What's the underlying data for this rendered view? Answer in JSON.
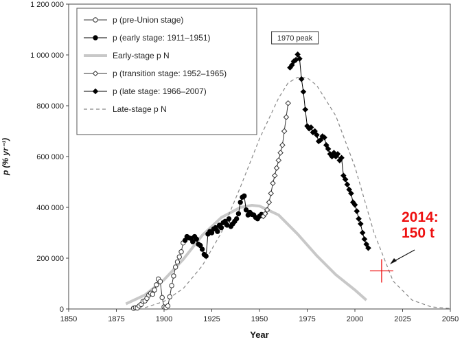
{
  "chart_data": {
    "type": "line",
    "xlabel": "Year",
    "ylabel": "p (% yr⁻¹)",
    "xlim": [
      1850,
      2050
    ],
    "ylim": [
      0,
      1200000
    ],
    "x_ticks": [
      1850,
      1875,
      1900,
      1925,
      1950,
      1975,
      2000,
      2025,
      2050
    ],
    "x_tick_labels": [
      "1850",
      "1875",
      "1900",
      "1925",
      "1950",
      "1975",
      "2000",
      "2025",
      "2050"
    ],
    "y_ticks": [
      0,
      200000,
      400000,
      600000,
      800000,
      1000000,
      1200000
    ],
    "y_tick_labels": [
      "0",
      "200 000",
      "400 000",
      "600 000",
      "800 000",
      "1 000 000",
      "1 200 000"
    ],
    "grid": false,
    "legend_position": "top-left",
    "series": [
      {
        "name": "p (pre-Union stage)",
        "style": "open-circle-line",
        "color": "#333333",
        "x": [
          1884,
          1885,
          1886,
          1887,
          1888,
          1889,
          1890,
          1891,
          1892,
          1893,
          1894,
          1895,
          1896,
          1897,
          1898,
          1899,
          1900,
          1901,
          1902,
          1903,
          1904,
          1905,
          1906,
          1907,
          1908,
          1909,
          1910
        ],
        "y": [
          3000,
          5000,
          4000,
          12000,
          18000,
          30000,
          32000,
          42000,
          55000,
          62000,
          58000,
          75000,
          95000,
          118000,
          108000,
          45000,
          8000,
          6000,
          12000,
          48000,
          92000,
          130000,
          165000,
          185000,
          205000,
          225000,
          260000
        ]
      },
      {
        "name": "p (early stage: 1911–1951)",
        "style": "filled-circle-line",
        "color": "#000000",
        "x": [
          1911,
          1912,
          1913,
          1914,
          1915,
          1916,
          1917,
          1918,
          1919,
          1920,
          1921,
          1922,
          1923,
          1924,
          1925,
          1926,
          1927,
          1928,
          1929,
          1930,
          1931,
          1932,
          1933,
          1934,
          1935,
          1936,
          1937,
          1938,
          1939,
          1940,
          1941,
          1942,
          1943,
          1944,
          1945,
          1946,
          1947,
          1948,
          1949,
          1950,
          1951
        ],
        "y": [
          270000,
          285000,
          280000,
          278000,
          265000,
          285000,
          275000,
          255000,
          250000,
          235000,
          215000,
          208000,
          295000,
          305000,
          300000,
          315000,
          320000,
          305000,
          330000,
          320000,
          340000,
          345000,
          330000,
          355000,
          325000,
          335000,
          345000,
          355000,
          375000,
          420000,
          440000,
          445000,
          390000,
          370000,
          380000,
          372000,
          370000,
          360000,
          355000,
          365000,
          372000
        ]
      },
      {
        "name": "Early-stage p N",
        "style": "thick-line",
        "color": "#c8c8c8",
        "x": [
          1880,
          1890,
          1900,
          1910,
          1920,
          1930,
          1940,
          1946,
          1950,
          1960,
          1970,
          1980,
          1990,
          2000,
          2006
        ],
        "y": [
          20000,
          55000,
          115000,
          195000,
          290000,
          360000,
          400000,
          408000,
          405000,
          370000,
          295000,
          210000,
          135000,
          75000,
          35000
        ]
      },
      {
        "name": "p (transition stage: 1952–1965)",
        "style": "open-diamond-line",
        "color": "#333333",
        "x": [
          1952,
          1953,
          1954,
          1955,
          1956,
          1957,
          1958,
          1959,
          1960,
          1961,
          1962,
          1963,
          1964,
          1965
        ],
        "y": [
          365000,
          375000,
          390000,
          420000,
          455000,
          495000,
          525000,
          555000,
          585000,
          615000,
          645000,
          700000,
          755000,
          810000
        ]
      },
      {
        "name": "p (late stage: 1966–2007)",
        "style": "filled-diamond-line",
        "color": "#000000",
        "x": [
          1966,
          1967,
          1968,
          1969,
          1970,
          1971,
          1972,
          1973,
          1974,
          1975,
          1976,
          1977,
          1978,
          1979,
          1980,
          1981,
          1982,
          1983,
          1984,
          1985,
          1986,
          1987,
          1988,
          1989,
          1990,
          1991,
          1992,
          1993,
          1994,
          1995,
          1996,
          1997,
          1998,
          1999,
          2000,
          2001,
          2002,
          2003,
          2004,
          2005,
          2006,
          2007
        ],
        "y": [
          950000,
          960000,
          975000,
          980000,
          1002000,
          985000,
          905000,
          855000,
          785000,
          720000,
          710000,
          715000,
          695000,
          700000,
          685000,
          660000,
          665000,
          680000,
          675000,
          645000,
          630000,
          610000,
          600000,
          615000,
          600000,
          610000,
          585000,
          595000,
          525000,
          510000,
          490000,
          470000,
          455000,
          420000,
          410000,
          385000,
          355000,
          335000,
          300000,
          275000,
          255000,
          240000
        ]
      },
      {
        "name": "Late-stage p N",
        "style": "dashed-line",
        "color": "#888888",
        "x": [
          1890,
          1900,
          1910,
          1920,
          1930,
          1940,
          1950,
          1960,
          1965,
          1970,
          1975,
          1980,
          1990,
          2000,
          2010,
          2020,
          2030,
          2040,
          2050
        ],
        "y": [
          5000,
          30000,
          80000,
          170000,
          300000,
          480000,
          670000,
          830000,
          890000,
          912000,
          910000,
          880000,
          760000,
          560000,
          300000,
          110000,
          35000,
          8000,
          2000
        ]
      }
    ],
    "annotations": [
      {
        "text": "1970 peak",
        "x": 1970,
        "y": 1003000,
        "boxed": true
      },
      {
        "text": "2014:",
        "color": "#ee1111"
      },
      {
        "text": "150 t",
        "color": "#ee1111"
      },
      {
        "text": "",
        "marker": "red-plus",
        "x": 2014,
        "y": 150000,
        "color": "#ee1111"
      }
    ]
  }
}
